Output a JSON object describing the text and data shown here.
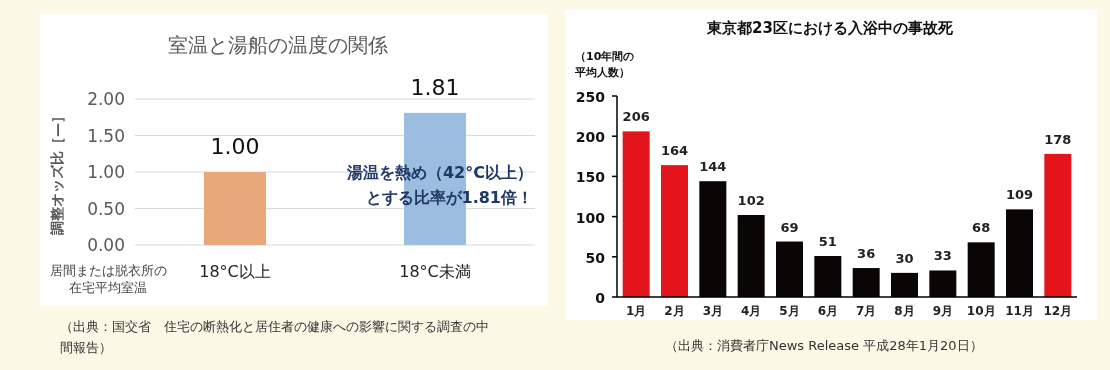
{
  "chart_data": [
    {
      "type": "bar",
      "title": "室温と湯船の温度の関係",
      "ylabel": "調整オッズ比［—］",
      "xlabel": "居間または脱衣所の在宅平均室温",
      "categories": [
        "18°C以上",
        "18°C未満"
      ],
      "values": [
        1.0,
        1.81
      ],
      "colors": [
        "#e9a87c",
        "#9bbde0"
      ],
      "value_labels": [
        "1.00",
        "1.81"
      ],
      "ylim": [
        0,
        2
      ],
      "yticks": [
        {
          "value": 0,
          "label": "0.00"
        },
        {
          "value": 0.5,
          "label": "0.50"
        },
        {
          "value": 1,
          "label": "1.00"
        },
        {
          "value": 1.5,
          "label": "1.50"
        },
        {
          "value": 2,
          "label": "2.00"
        }
      ],
      "grid": "y",
      "annotations": [
        "湯温を熱め（42°C以上）",
        "とする比率が1.81倍！",
        "（出典：国交省　住宅の断熱化と居住者の健康への影響に関する調査の中間報告）"
      ]
    },
    {
      "type": "bar",
      "title": "東京都23区における入浴中の事故死",
      "ylabel": "（10年間の平均人数）",
      "categories": [
        "1月",
        "2月",
        "3月",
        "4月",
        "5月",
        "6月",
        "7月",
        "8月",
        "9月",
        "10月",
        "11月",
        "12月"
      ],
      "values": [
        206,
        164,
        144,
        102,
        69,
        51,
        36,
        30,
        33,
        68,
        109,
        178
      ],
      "colors": [
        "#e3151b",
        "#e3151b",
        "#0a0606",
        "#0a0606",
        "#0a0606",
        "#0a0606",
        "#0a0606",
        "#0a0606",
        "#0a0606",
        "#0a0606",
        "#0a0606",
        "#e3151b"
      ],
      "data_labels": true,
      "ylim": [
        0,
        250
      ],
      "yticks": [
        0,
        50,
        100,
        150,
        200,
        250
      ],
      "annotations": [
        "（出典：消費者庁News Release 平成28年1月20日）"
      ]
    }
  ]
}
